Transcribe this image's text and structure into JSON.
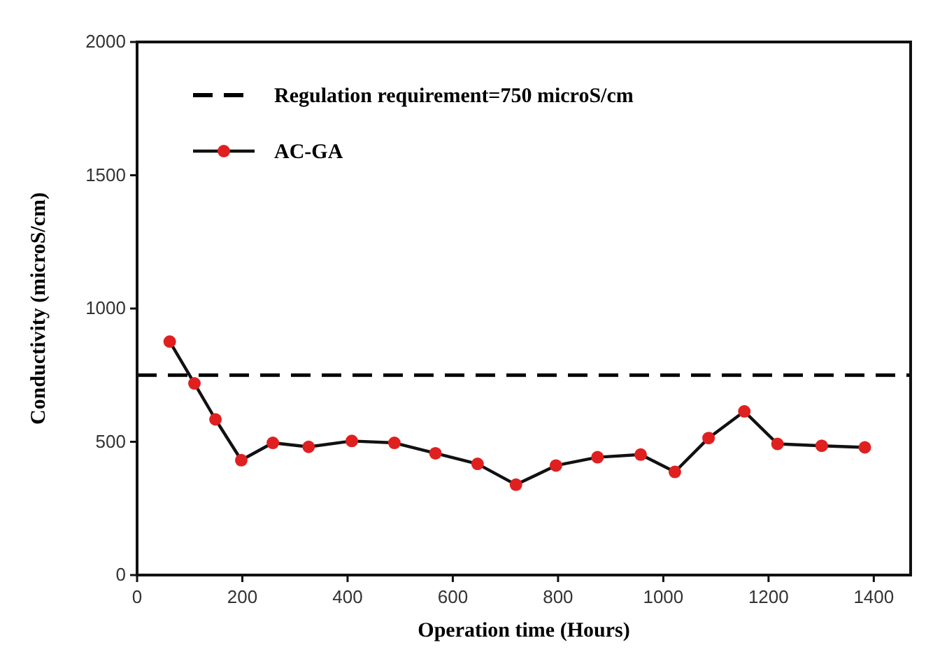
{
  "chart_data": {
    "type": "line",
    "xlabel": "Operation time (Hours)",
    "ylabel": "Conductivity (microS/cm)",
    "xlim": [
      0,
      1470
    ],
    "xticks": [
      0,
      200,
      400,
      600,
      800,
      1000,
      1200,
      1400
    ],
    "ylim": [
      0,
      2000
    ],
    "yticks": [
      0,
      500,
      1000,
      1500,
      2000
    ],
    "x": [
      62,
      109,
      149,
      198,
      258,
      326,
      408,
      489,
      567,
      647,
      720,
      796,
      875,
      957,
      1022,
      1086,
      1154,
      1217,
      1301,
      1383
    ],
    "series": [
      {
        "name": "AC-GA",
        "color": "#e02020",
        "values": [
          876,
          719,
          584,
          431,
          496,
          481,
          503,
          496,
          457,
          417,
          339,
          411,
          442,
          452,
          387,
          514,
          614,
          492,
          485,
          479
        ]
      }
    ],
    "ref_lines": [
      {
        "axis": "y",
        "value": 750,
        "label": "Regulation requirement=750 microS/cm",
        "color": "#000000",
        "line_style": "dashed"
      }
    ],
    "marker": "circle",
    "line_style": "solid",
    "legend": "top left",
    "grid": false
  }
}
